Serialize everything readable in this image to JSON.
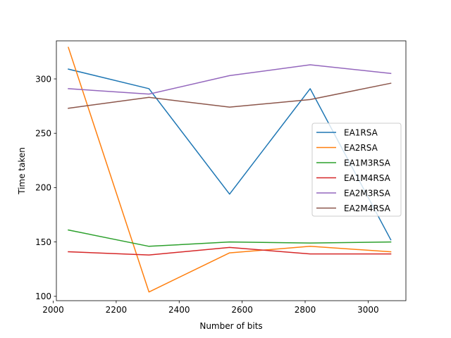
{
  "chart_data": {
    "type": "line",
    "title": "",
    "xlabel": "Number of bits",
    "ylabel": "Time taken",
    "xlim": [
      2010,
      3120
    ],
    "ylim": [
      96,
      335
    ],
    "x": [
      2048,
      2304,
      2560,
      2816,
      3072
    ],
    "x_ticks": [
      2000,
      2200,
      2400,
      2600,
      2800,
      3000
    ],
    "y_ticks": [
      100,
      150,
      200,
      250,
      300
    ],
    "grid": false,
    "legend_position": "center-right",
    "series": [
      {
        "name": "EA1RSA",
        "color": "#1f77b4",
        "values": [
          309,
          291,
          194,
          291,
          152
        ]
      },
      {
        "name": "EA2RSA",
        "color": "#ff7f0e",
        "values": [
          329,
          104,
          140,
          146,
          141
        ]
      },
      {
        "name": "EA1M3RSA",
        "color": "#2ca02c",
        "values": [
          161,
          146,
          150,
          149,
          150
        ]
      },
      {
        "name": "EA1M4RSA",
        "color": "#d62728",
        "values": [
          141,
          138,
          145,
          139,
          139
        ]
      },
      {
        "name": "EA2M3RSA",
        "color": "#9467bd",
        "values": [
          291,
          286,
          303,
          313,
          305
        ]
      },
      {
        "name": "EA2M4RSA",
        "color": "#8c564b",
        "values": [
          273,
          283,
          274,
          281,
          296
        ]
      }
    ]
  }
}
